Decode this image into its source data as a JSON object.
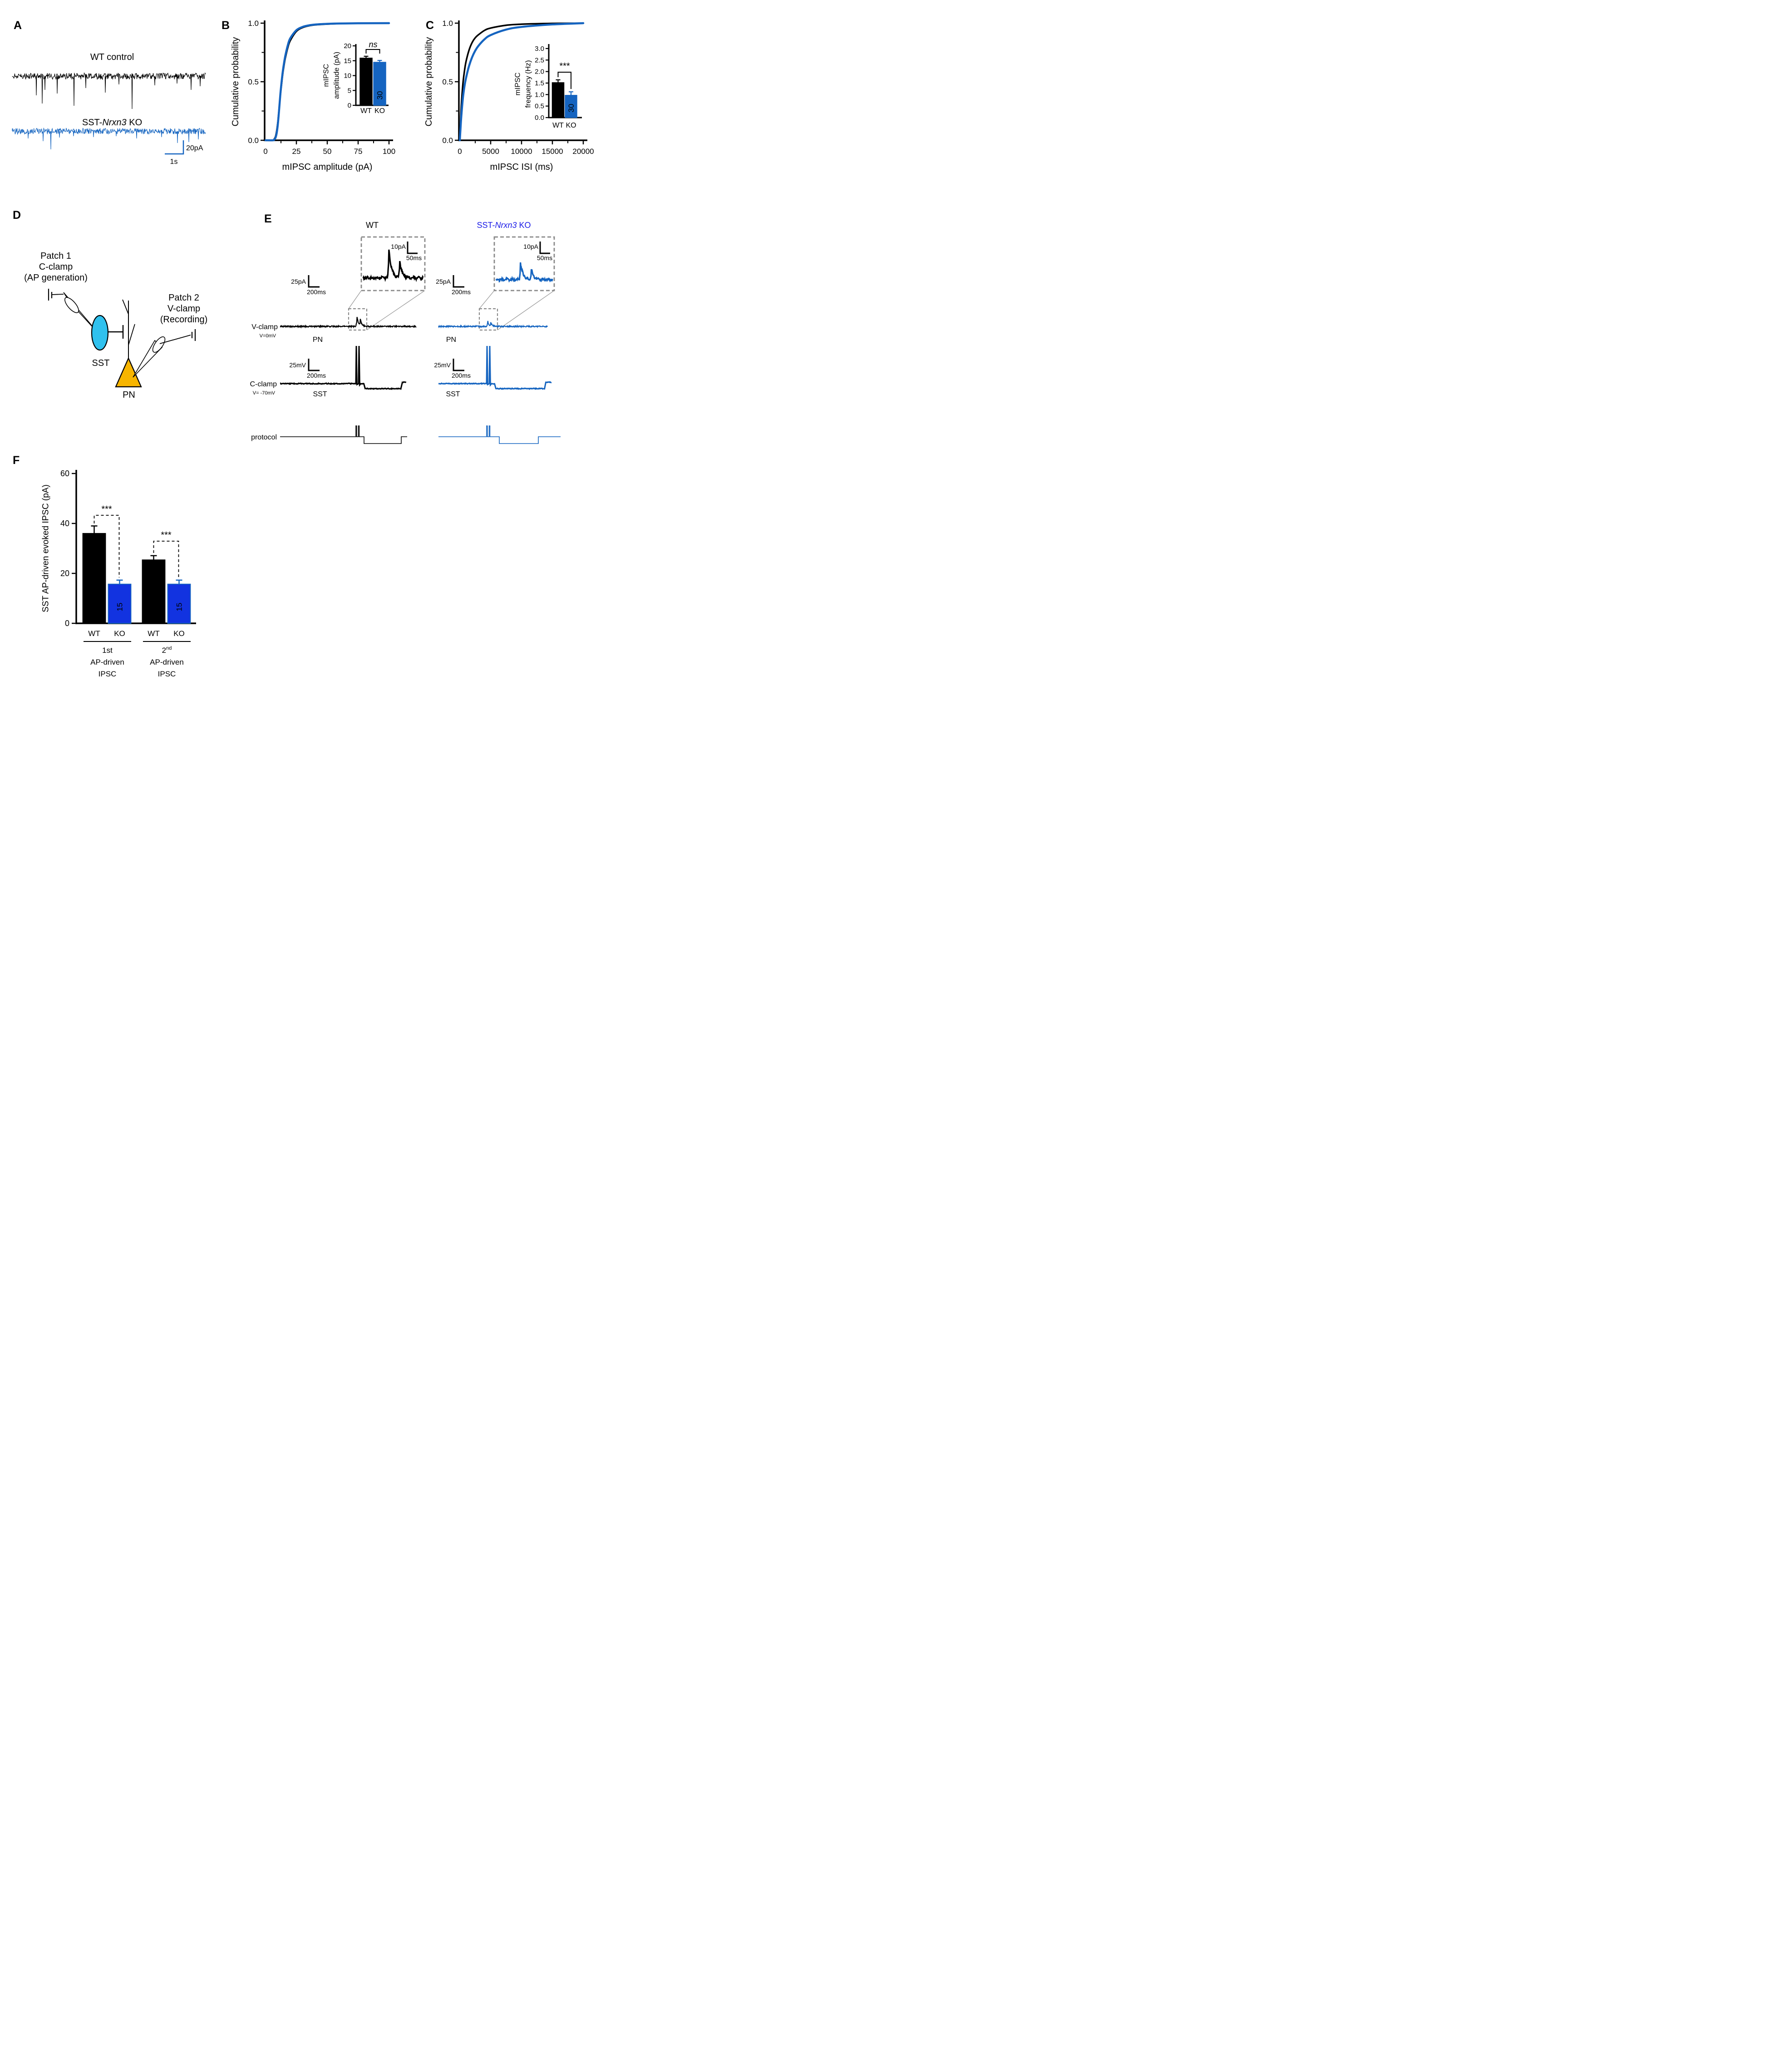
{
  "panels": {
    "A": "A",
    "B": "B",
    "C": "C",
    "D": "D",
    "E": "E",
    "F": "F"
  },
  "colors": {
    "wt_black": "#000000",
    "ko_blue": "#1565c0",
    "f_bar_blue": "#1134e0",
    "e_title_blue": "#1b1be8",
    "sst_fill": "#30c1ef",
    "pn_fill": "#f7b500",
    "box_gray": "#8a8a8a"
  },
  "panelA": {
    "wt_title": "WT control",
    "ko_pre": "SST-",
    "ko_it": "Nrxn3",
    "ko_post": " KO",
    "scale_v": "20pA",
    "scale_h": "1s",
    "wt_spikes": [
      [
        80,
        42
      ],
      [
        93,
        60
      ],
      [
        99,
        30
      ],
      [
        126,
        38
      ],
      [
        163,
        65
      ],
      [
        189,
        26
      ],
      [
        232,
        36
      ],
      [
        262,
        18
      ],
      [
        291,
        72
      ],
      [
        341,
        20
      ],
      [
        390,
        16
      ],
      [
        421,
        30
      ],
      [
        441,
        22
      ]
    ],
    "ko_spikes": [
      [
        62,
        16
      ],
      [
        95,
        22
      ],
      [
        112,
        40
      ],
      [
        131,
        14
      ],
      [
        162,
        11
      ],
      [
        206,
        13
      ],
      [
        256,
        11
      ],
      [
        301,
        16
      ],
      [
        356,
        13
      ],
      [
        391,
        26
      ],
      [
        416,
        24
      ],
      [
        437,
        18
      ]
    ]
  },
  "panelD": {
    "patch1": [
      "Patch 1",
      "C-clamp",
      "(AP generation)"
    ],
    "patch2": [
      "Patch 2",
      "V-clamp",
      "(Recording)"
    ],
    "sst": "SST",
    "pn": "PN"
  },
  "panelE": {
    "wt_title": "WT",
    "ko_pre": "SST-",
    "ko_it": "Nrxn3",
    "ko_post": " KO",
    "vclamp": "V-clamp",
    "vclamp_sub": "V=0mV",
    "pn": "PN",
    "cclamp": "C-clamp",
    "cclamp_sub": "V= -70mV",
    "sst": "SST",
    "protocol": "protocol",
    "inset_scale_v": "10pA",
    "inset_scale_h": "50ms",
    "vc_scale_v": "25pA",
    "vc_scale_h": "200ms",
    "cc_scale_v": "25mV",
    "cc_scale_h": "200ms"
  },
  "chart_data": [
    {
      "id": "B_cdf",
      "type": "line",
      "title": "",
      "xlabel": "mIPSC amplitude (pA)",
      "ylabel": "Cumulative probability",
      "xlim": [
        0,
        100
      ],
      "ylim": [
        0,
        1
      ],
      "xticks": [
        0,
        25,
        50,
        75,
        100
      ],
      "yticks": [
        "0.0",
        "0.5",
        "1.0"
      ],
      "grid": false,
      "legend": "none",
      "series": [
        {
          "name": "WT",
          "color": "#000000",
          "x": [
            0,
            6,
            7,
            8,
            9,
            10,
            11,
            12,
            13,
            14,
            15,
            16,
            18,
            20,
            25,
            30,
            35,
            40,
            50,
            60,
            75,
            100
          ],
          "y": [
            0,
            0,
            0.01,
            0.03,
            0.08,
            0.16,
            0.27,
            0.38,
            0.48,
            0.57,
            0.64,
            0.7,
            0.79,
            0.85,
            0.93,
            0.962,
            0.977,
            0.985,
            0.992,
            0.996,
            0.999,
            1
          ]
        },
        {
          "name": "SST-Nrxn3 KO",
          "color": "#1565c0",
          "x": [
            0,
            6,
            7,
            8,
            9,
            10,
            11,
            12,
            13,
            14,
            15,
            16,
            18,
            20,
            25,
            30,
            35,
            40,
            50,
            60,
            75,
            100
          ],
          "y": [
            0,
            0,
            0.005,
            0.02,
            0.06,
            0.14,
            0.26,
            0.39,
            0.5,
            0.59,
            0.66,
            0.72,
            0.81,
            0.87,
            0.94,
            0.968,
            0.981,
            0.988,
            0.994,
            0.997,
            0.999,
            1
          ]
        }
      ]
    },
    {
      "id": "B_inset",
      "type": "bar",
      "ylabel_lines": [
        "mIPSC",
        "amplitude (pA)"
      ],
      "ylim": [
        0,
        20
      ],
      "yticks": [
        "0",
        "5",
        "10",
        "15",
        "20"
      ],
      "categories": [
        "WT",
        "KO"
      ],
      "values": [
        15.9,
        14.5
      ],
      "errors": [
        0.6,
        0.6
      ],
      "n": [
        30,
        30
      ],
      "colors": [
        "#000000",
        "#1565c0"
      ],
      "sig": "ns"
    },
    {
      "id": "C_cdf",
      "type": "line",
      "title": "",
      "xlabel": "mIPSC ISI (ms)",
      "ylabel": "Cumulative probability",
      "xlim": [
        0,
        20000
      ],
      "ylim": [
        0,
        1
      ],
      "xticks": [
        0,
        5000,
        10000,
        15000,
        20000
      ],
      "yticks": [
        "0.0",
        "0.5",
        "1.0"
      ],
      "grid": false,
      "legend": "none",
      "series": [
        {
          "name": "WT",
          "color": "#000000",
          "x": [
            0,
            100,
            250,
            500,
            750,
            1000,
            1500,
            2000,
            2500,
            3000,
            4000,
            5000,
            7500,
            10000,
            15000,
            20000
          ],
          "y": [
            0,
            0.13,
            0.3,
            0.48,
            0.59,
            0.67,
            0.77,
            0.835,
            0.875,
            0.9,
            0.938,
            0.958,
            0.982,
            0.991,
            0.998,
            1
          ]
        },
        {
          "name": "SST-Nrxn3 KO",
          "color": "#1565c0",
          "x": [
            0,
            100,
            250,
            500,
            750,
            1000,
            1500,
            2000,
            2500,
            3000,
            4000,
            5000,
            7500,
            10000,
            15000,
            20000
          ],
          "y": [
            0,
            0.09,
            0.21,
            0.36,
            0.46,
            0.53,
            0.635,
            0.71,
            0.765,
            0.805,
            0.862,
            0.898,
            0.945,
            0.968,
            0.989,
            1
          ]
        }
      ]
    },
    {
      "id": "C_inset",
      "type": "bar",
      "ylabel_lines": [
        "mIPSC",
        "frequency (Hz)"
      ],
      "ylim": [
        0,
        3
      ],
      "yticks": [
        "0.0",
        "0.5",
        "1.0",
        "1.5",
        "2.0",
        "2.5",
        "3.0"
      ],
      "categories": [
        "WT",
        "KO"
      ],
      "values": [
        1.52,
        0.97
      ],
      "errors": [
        0.12,
        0.15
      ],
      "n": [
        30,
        30
      ],
      "colors": [
        "#000000",
        "#1565c0"
      ],
      "sig": "***"
    },
    {
      "id": "F_bar",
      "type": "bar",
      "ylabel": "SST AP-driven evoked IPSC (pA)",
      "ylim": [
        0,
        60
      ],
      "yticks": [
        "0",
        "20",
        "40",
        "60"
      ],
      "categories": [
        "WT",
        "KO",
        "WT",
        "KO"
      ],
      "values": [
        36,
        15.7,
        25.4,
        15.7
      ],
      "errors": [
        3,
        1.6,
        1.7,
        1.6
      ],
      "n": [
        10,
        15,
        10,
        15
      ],
      "colors": [
        "#000000",
        "#1134e0",
        "#000000",
        "#1134e0"
      ],
      "groups": [
        {
          "label_lines": [
            "1st",
            "AP-driven",
            "IPSC"
          ],
          "bars": [
            0,
            1
          ],
          "sig": "***"
        },
        {
          "label_base": "2",
          "label_sup": "nd",
          "label_lines": [
            "AP-driven",
            "IPSC"
          ],
          "bars": [
            2,
            3
          ],
          "sig": "***"
        }
      ]
    }
  ]
}
